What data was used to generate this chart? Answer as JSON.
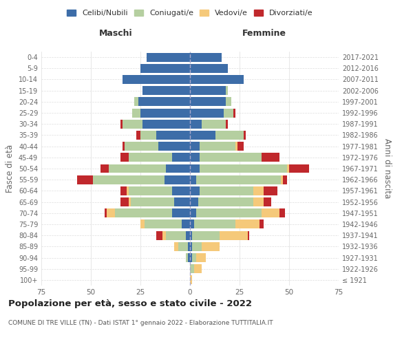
{
  "age_groups": [
    "100+",
    "95-99",
    "90-94",
    "85-89",
    "80-84",
    "75-79",
    "70-74",
    "65-69",
    "60-64",
    "55-59",
    "50-54",
    "45-49",
    "40-44",
    "35-39",
    "30-34",
    "25-29",
    "20-24",
    "15-19",
    "10-14",
    "5-9",
    "0-4"
  ],
  "birth_years": [
    "≤ 1921",
    "1922-1926",
    "1927-1931",
    "1932-1936",
    "1937-1941",
    "1942-1946",
    "1947-1951",
    "1952-1956",
    "1957-1961",
    "1962-1966",
    "1967-1971",
    "1972-1976",
    "1977-1981",
    "1982-1986",
    "1987-1991",
    "1992-1996",
    "1997-2001",
    "2002-2006",
    "2007-2011",
    "2012-2016",
    "2017-2021"
  ],
  "colors": {
    "celibe": "#3d6da8",
    "coniugato": "#b5cfa0",
    "vedovo": "#f5c97a",
    "divorziato": "#c0282c"
  },
  "maschi": {
    "celibe": [
      0,
      0,
      1,
      1,
      2,
      4,
      9,
      8,
      9,
      13,
      12,
      9,
      16,
      17,
      24,
      25,
      26,
      24,
      34,
      25,
      22
    ],
    "coniugato": [
      0,
      0,
      1,
      5,
      10,
      19,
      29,
      22,
      22,
      36,
      29,
      22,
      17,
      8,
      10,
      4,
      2,
      0,
      0,
      0,
      0
    ],
    "vedovo": [
      0,
      0,
      0,
      2,
      2,
      2,
      4,
      1,
      1,
      0,
      0,
      0,
      0,
      0,
      0,
      0,
      0,
      0,
      0,
      0,
      0
    ],
    "divorziato": [
      0,
      0,
      0,
      0,
      3,
      0,
      1,
      4,
      3,
      8,
      4,
      4,
      1,
      2,
      1,
      0,
      0,
      0,
      0,
      0,
      0
    ]
  },
  "femmine": {
    "nubile": [
      0,
      0,
      1,
      1,
      1,
      2,
      3,
      4,
      5,
      3,
      5,
      5,
      5,
      13,
      6,
      17,
      18,
      18,
      27,
      19,
      16
    ],
    "coniugata": [
      0,
      2,
      2,
      5,
      14,
      21,
      33,
      28,
      27,
      43,
      44,
      31,
      18,
      14,
      12,
      5,
      3,
      1,
      0,
      0,
      0
    ],
    "vedova": [
      1,
      4,
      5,
      9,
      14,
      12,
      9,
      5,
      5,
      1,
      1,
      0,
      1,
      0,
      0,
      0,
      0,
      0,
      0,
      0,
      0
    ],
    "divorziata": [
      0,
      0,
      0,
      0,
      1,
      2,
      3,
      4,
      7,
      2,
      10,
      9,
      3,
      1,
      1,
      1,
      0,
      0,
      0,
      0,
      0
    ]
  },
  "xlim": 75,
  "title": "Popolazione per età, sesso e stato civile - 2022",
  "subtitle": "COMUNE DI TRE VILLE (TN) - Dati ISTAT 1° gennaio 2022 - Elaborazione TUTTITALIA.IT",
  "ylabel_left": "Fasce di età",
  "ylabel_right": "Anni di nascita",
  "legend_labels": [
    "Celibi/Nubili",
    "Coniugati/e",
    "Vedovi/e",
    "Divorziati/e"
  ]
}
